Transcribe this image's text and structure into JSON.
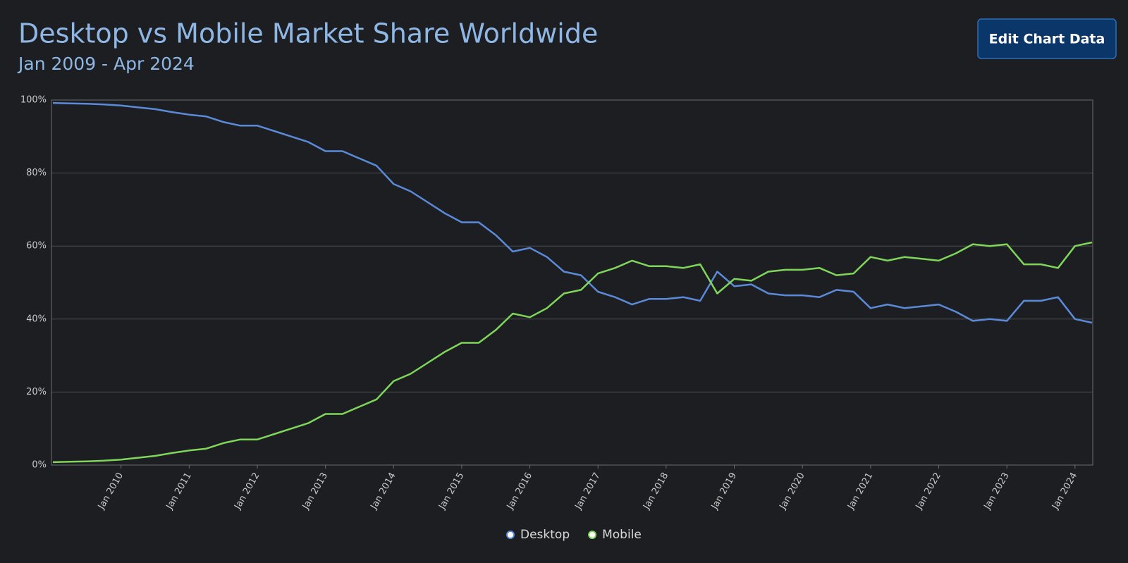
{
  "chart_data": {
    "type": "line",
    "title": "Desktop vs Mobile Market Share Worldwide",
    "subtitle": "Jan 2009 - Apr 2024",
    "categories": [
      null,
      null,
      null,
      null,
      "Jan 2010",
      null,
      null,
      null,
      "Jan 2011",
      null,
      null,
      null,
      "Jan 2012",
      null,
      null,
      null,
      "Jan 2013",
      null,
      null,
      null,
      "Jan 2014",
      null,
      null,
      null,
      "Jan 2015",
      null,
      null,
      null,
      "Jan 2016",
      null,
      null,
      null,
      "Jan 2017",
      null,
      null,
      null,
      "Jan 2018",
      null,
      null,
      null,
      "Jan 2019",
      null,
      null,
      null,
      "Jan 2020",
      null,
      null,
      null,
      "Jan 2021",
      null,
      null,
      null,
      "Jan 2022",
      null,
      null,
      null,
      "Jan 2023",
      null,
      null,
      null,
      "Jan 2024",
      null
    ],
    "series": [
      {
        "name": "Desktop",
        "color": "#5b8ad9",
        "values": [
          99.2,
          99.1,
          99.0,
          98.8,
          98.5,
          98.0,
          97.5,
          96.7,
          96.0,
          95.5,
          94.0,
          93.0,
          93.0,
          91.5,
          90.0,
          88.5,
          86.0,
          86.0,
          84.0,
          82.0,
          77.0,
          75.0,
          72.0,
          69.0,
          66.5,
          66.5,
          63.0,
          58.5,
          59.5,
          57.0,
          53.0,
          52.0,
          47.5,
          46.0,
          44.0,
          45.5,
          45.5,
          46.0,
          45.0,
          53.0,
          49.0,
          49.5,
          47.0,
          46.5,
          46.5,
          46.0,
          48.0,
          47.5,
          43.0,
          44.0,
          43.0,
          43.5,
          44.0,
          42.0,
          39.5,
          40.0,
          39.5,
          45.0,
          45.0,
          46.0,
          40.0,
          39.0
        ]
      },
      {
        "name": "Mobile",
        "color": "#7fd65a",
        "values": [
          0.8,
          0.9,
          1.0,
          1.2,
          1.5,
          2.0,
          2.5,
          3.3,
          4.0,
          4.5,
          6.0,
          7.0,
          7.0,
          8.5,
          10.0,
          11.5,
          14.0,
          14.0,
          16.0,
          18.0,
          23.0,
          25.0,
          28.0,
          31.0,
          33.5,
          33.5,
          37.0,
          41.5,
          40.5,
          43.0,
          47.0,
          48.0,
          52.5,
          54.0,
          56.0,
          54.5,
          54.5,
          54.0,
          55.0,
          47.0,
          51.0,
          50.5,
          53.0,
          53.5,
          53.5,
          54.0,
          52.0,
          52.5,
          57.0,
          56.0,
          57.0,
          56.5,
          56.0,
          58.0,
          60.5,
          60.0,
          60.5,
          55.0,
          55.0,
          54.0,
          60.0,
          61.0
        ]
      }
    ],
    "ylim": [
      0,
      100
    ],
    "yticks": [
      {
        "value": 0,
        "label": "0%"
      },
      {
        "value": 20,
        "label": "20%"
      },
      {
        "value": 40,
        "label": "40%"
      },
      {
        "value": 60,
        "label": "60%"
      },
      {
        "value": 80,
        "label": "80%"
      },
      {
        "value": 100,
        "label": "100%"
      }
    ],
    "grid": true,
    "legend": "bottom"
  },
  "ui": {
    "button": "Edit Chart Data"
  }
}
